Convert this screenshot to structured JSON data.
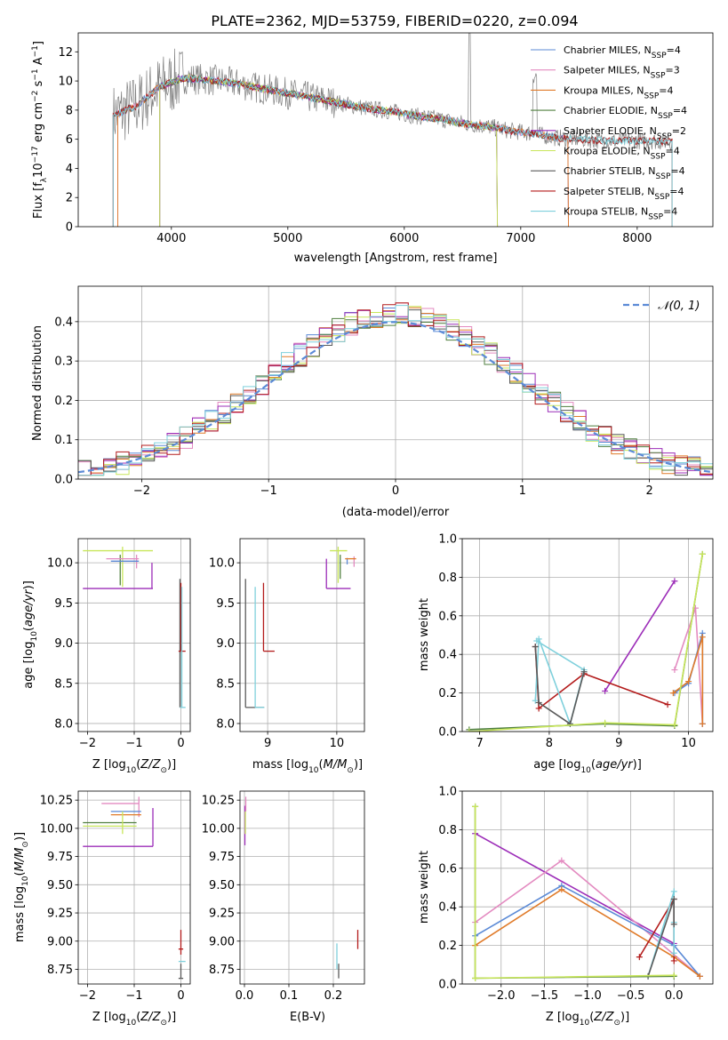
{
  "figure_title": "PLATE=2362, MJD=53759, FIBERID=0220, z=0.094",
  "colors": {
    "Chabrier MILES": "#5b8ad6",
    "Salpeter MILES": "#e38ac0",
    "Kroupa MILES": "#e07b2a",
    "Chabrier ELODIE": "#4f7f3f",
    "Salpeter ELODIE": "#9c2db8",
    "Kroupa ELODIE": "#c8e65a",
    "Chabrier STELIB": "#5a5a5a",
    "Salpeter STELIB": "#b31b1b",
    "Kroupa STELIB": "#7fd0dc",
    "data": "#808080",
    "normal": "#5b8ad6"
  },
  "chart_data": [
    {
      "id": "spectrum",
      "type": "line",
      "title": "PLATE=2362, MJD=53759, FIBERID=0220, z=0.094",
      "xlabel": "wavelength [Angstrom, rest frame]",
      "ylabel": "Flux [f",
      "ylabel_parts": [
        "Flux [f",
        "λ",
        "10",
        "−17",
        " erg cm",
        "−2",
        " s",
        "−1",
        " A",
        "−1",
        "]"
      ],
      "xlim": [
        3200,
        8650
      ],
      "ylim": [
        0,
        13.3
      ],
      "xticks": [
        4000,
        5000,
        6000,
        7000,
        8000
      ],
      "yticks": [
        0,
        2,
        4,
        6,
        8,
        10,
        12
      ],
      "legend": "top-right",
      "legend_entries": [
        {
          "label": "Chabrier MILES, N",
          "sub": "SSP",
          "tail": "=4",
          "model": "Chabrier MILES"
        },
        {
          "label": "Salpeter MILES, N",
          "sub": "SSP",
          "tail": "=3",
          "model": "Salpeter MILES"
        },
        {
          "label": "Kroupa MILES, N",
          "sub": "SSP",
          "tail": "=4",
          "model": "Kroupa MILES"
        },
        {
          "label": "Chabrier ELODIE, N",
          "sub": "SSP",
          "tail": "=4",
          "model": "Chabrier ELODIE"
        },
        {
          "label": "Salpeter ELODIE, N",
          "sub": "SSP",
          "tail": "=2",
          "model": "Salpeter ELODIE"
        },
        {
          "label": "Kroupa ELODIE, N",
          "sub": "SSP",
          "tail": "=4",
          "model": "Kroupa ELODIE"
        },
        {
          "label": "Chabrier STELIB, N",
          "sub": "SSP",
          "tail": "=4",
          "model": "Chabrier STELIB"
        },
        {
          "label": "Salpeter STELIB, N",
          "sub": "SSP",
          "tail": "=4",
          "model": "Salpeter STELIB"
        },
        {
          "label": "Kroupa STELIB, N",
          "sub": "SSP",
          "tail": "=4",
          "model": "Kroupa STELIB"
        }
      ],
      "continuum": {
        "x": [
          3500,
          3700,
          3900,
          4100,
          4300,
          4500,
          4700,
          4900,
          5100,
          5300,
          5500,
          5700,
          5900,
          6100,
          6300,
          6500,
          6700,
          6900,
          7100,
          7300,
          7500,
          7700,
          7900,
          8100,
          8300
        ],
        "y": [
          7.6,
          8.3,
          9.6,
          10.2,
          10.1,
          9.9,
          9.6,
          9.3,
          9.0,
          8.7,
          8.4,
          8.1,
          7.9,
          7.6,
          7.4,
          7.1,
          6.9,
          6.6,
          6.4,
          6.1,
          6.0,
          5.9,
          5.9,
          5.9,
          5.8
        ]
      },
      "model_x_ranges": {
        "MILES": [
          3540,
          7410
        ],
        "ELODIE": [
          3900,
          6800
        ],
        "STELIB": [
          3500,
          8300
        ]
      }
    },
    {
      "id": "residuals",
      "type": "histogram",
      "xlabel": "(data-model)/error",
      "ylabel": "Normed distribution",
      "xlim": [
        -2.5,
        2.5
      ],
      "ylim": [
        0,
        0.49
      ],
      "xticks": [
        -2,
        -1,
        0,
        1,
        2
      ],
      "yticks": [
        0.0,
        0.1,
        0.2,
        0.3,
        0.4
      ],
      "legend": "top-right",
      "legend_label": "𝒩(0, 1)",
      "bin_width": 0.1
    },
    {
      "id": "age-Z",
      "type": "scatter",
      "xlabel": "Z [log10(Z/Z⊙)]",
      "ylabel": "age  [log10(age/yr)]",
      "xlim": [
        -2.2,
        0.2
      ],
      "ylim": [
        7.9,
        10.3
      ],
      "xticks": [
        -2,
        -1,
        0
      ],
      "yticks": [
        8.0,
        8.5,
        9.0,
        9.5,
        10.0
      ],
      "bars": [
        {
          "model": "Kroupa ELODIE",
          "h": [
            -2.1,
            -0.6
          ],
          "y": 10.15
        },
        {
          "model": "Kroupa ELODIE",
          "h": [
            -1.3,
            -1.2
          ],
          "v": [
            9.7,
            10.2
          ],
          "x": -1.25
        },
        {
          "model": "Chabrier ELODIE",
          "v": [
            9.72,
            10.1
          ],
          "x": -1.3
        },
        {
          "model": "Salpeter ELODIE",
          "h": [
            -2.1,
            -0.6
          ],
          "y": 9.68
        },
        {
          "model": "Salpeter ELODIE",
          "v": [
            9.68,
            10.0
          ],
          "x": -0.62
        },
        {
          "model": "Salpeter MILES",
          "h": [
            -1.6,
            -0.9
          ],
          "y": 10.05
        },
        {
          "model": "Salpeter MILES",
          "v": [
            9.93,
            10.1
          ],
          "x": -0.95
        },
        {
          "model": "Chabrier MILES",
          "h": [
            -1.5,
            -0.9
          ],
          "y": 10.02
        },
        {
          "model": "Chabrier STELIB",
          "v": [
            8.2,
            9.8
          ],
          "x": -0.02
        },
        {
          "model": "Salpeter STELIB",
          "v": [
            8.9,
            9.75
          ],
          "x": 0.0
        },
        {
          "model": "Salpeter STELIB",
          "h": [
            -0.05,
            0.1
          ],
          "y": 8.9
        },
        {
          "model": "Kroupa STELIB",
          "v": [
            8.2,
            9.7
          ],
          "x": 0.02
        },
        {
          "model": "Kroupa STELIB",
          "h": [
            -0.02,
            0.1
          ],
          "y": 8.2
        }
      ]
    },
    {
      "id": "age-mass",
      "type": "scatter",
      "xlabel": "mass [log10(M/M⊙)]",
      "ylabel": "",
      "xlim": [
        8.6,
        10.4
      ],
      "ylim": [
        7.9,
        10.3
      ],
      "xticks": [
        9,
        10
      ],
      "yticks": [
        8.0,
        8.5,
        9.0,
        9.5,
        10.0
      ],
      "bars": [
        {
          "model": "Chabrier STELIB",
          "v": [
            8.2,
            9.8
          ],
          "x": 8.68
        },
        {
          "model": "Chabrier STELIB",
          "h": [
            8.68,
            8.95
          ],
          "y": 8.2
        },
        {
          "model": "Kroupa STELIB",
          "v": [
            8.2,
            9.7
          ],
          "x": 8.82
        },
        {
          "model": "Kroupa STELIB",
          "h": [
            8.82,
            8.95
          ],
          "y": 8.2
        },
        {
          "model": "Salpeter STELIB",
          "v": [
            8.9,
            9.75
          ],
          "x": 8.94
        },
        {
          "model": "Salpeter STELIB",
          "h": [
            8.94,
            9.1
          ],
          "y": 8.9
        },
        {
          "model": "Salpeter ELODIE",
          "h": [
            9.85,
            10.2
          ],
          "y": 9.68
        },
        {
          "model": "Salpeter ELODIE",
          "v": [
            9.68,
            10.05
          ],
          "x": 9.85
        },
        {
          "model": "Kroupa ELODIE",
          "h": [
            9.9,
            10.15
          ],
          "y": 10.15
        },
        {
          "model": "Kroupa ELODIE",
          "v": [
            9.75,
            10.2
          ],
          "x": 10.02
        },
        {
          "model": "Chabrier ELODIE",
          "v": [
            9.8,
            10.1
          ],
          "x": 10.05
        },
        {
          "model": "Salpeter MILES",
          "v": [
            9.95,
            10.08
          ],
          "x": 10.25
        },
        {
          "model": "Chabrier MILES",
          "v": [
            9.98,
            10.06
          ],
          "x": 10.15
        },
        {
          "model": "Kroupa MILES",
          "h": [
            10.12,
            10.28
          ],
          "y": 10.05
        }
      ]
    },
    {
      "id": "weight-age",
      "type": "line",
      "xlabel": "age  [log10(age/yr)]",
      "ylabel": "mass weight",
      "xlim": [
        6.75,
        10.35
      ],
      "ylim": [
        0,
        1.0
      ],
      "xticks": [
        7,
        8,
        9,
        10
      ],
      "yticks": [
        0.0,
        0.2,
        0.4,
        0.6,
        0.8,
        1.0
      ],
      "series": [
        {
          "model": "Salpeter ELODIE",
          "x": [
            8.8,
            9.8
          ],
          "y": [
            0.21,
            0.78
          ]
        },
        {
          "model": "Salpeter STELIB",
          "x": [
            7.8,
            7.85,
            8.5,
            9.7
          ],
          "y": [
            0.44,
            0.12,
            0.3,
            0.14
          ]
        },
        {
          "model": "Kroupa STELIB",
          "x": [
            7.8,
            7.85,
            8.3,
            8.5,
            7.82
          ],
          "y": [
            0.16,
            0.48,
            0.04,
            0.32,
            0.47
          ]
        },
        {
          "model": "Chabrier STELIB",
          "x": [
            7.8,
            7.85,
            8.3,
            8.5
          ],
          "y": [
            0.44,
            0.15,
            0.04,
            0.31
          ]
        },
        {
          "model": "Salpeter MILES",
          "x": [
            9.8,
            10.1,
            10.2
          ],
          "y": [
            0.32,
            0.64,
            0.04
          ]
        },
        {
          "model": "Chabrier MILES",
          "x": [
            9.8,
            10.0,
            10.2,
            10.2
          ],
          "y": [
            0.2,
            0.25,
            0.51,
            0.04
          ]
        },
        {
          "model": "Kroupa MILES",
          "x": [
            9.78,
            10.0,
            10.2,
            10.2
          ],
          "y": [
            0.2,
            0.26,
            0.49,
            0.04
          ]
        },
        {
          "model": "Chabrier ELODIE",
          "x": [
            6.85,
            8.8,
            9.8,
            10.2
          ],
          "y": [
            0.01,
            0.04,
            0.03,
            0.92
          ]
        },
        {
          "model": "Kroupa ELODIE",
          "x": [
            6.85,
            8.8,
            9.8,
            10.2
          ],
          "y": [
            0.0,
            0.045,
            0.035,
            0.92
          ]
        }
      ]
    },
    {
      "id": "mass-Z",
      "type": "scatter",
      "xlabel": "Z [log10(Z/Z⊙)]",
      "ylabel": "mass [log10(M/M⊙)]",
      "xlim": [
        -2.2,
        0.2
      ],
      "ylim": [
        8.62,
        10.33
      ],
      "xticks": [
        -2,
        -1,
        0
      ],
      "yticks": [
        8.75,
        9.0,
        9.25,
        9.5,
        9.75,
        10.0,
        10.25
      ],
      "bars": [
        {
          "model": "Salpeter MILES",
          "h": [
            -1.7,
            -0.9
          ],
          "y": 10.22
        },
        {
          "model": "Salpeter MILES",
          "v": [
            10.1,
            10.28
          ],
          "x": -0.9
        },
        {
          "model": "Chabrier MILES",
          "h": [
            -1.5,
            -0.85
          ],
          "y": 10.15
        },
        {
          "model": "Kroupa MILES",
          "h": [
            -1.5,
            -0.85
          ],
          "y": 10.12
        },
        {
          "model": "Chabrier ELODIE",
          "h": [
            -2.1,
            -0.95
          ],
          "y": 10.05
        },
        {
          "model": "Kroupa ELODIE",
          "h": [
            -2.1,
            -0.95
          ],
          "y": 10.02
        },
        {
          "model": "Kroupa ELODIE",
          "v": [
            9.95,
            10.15
          ],
          "x": -1.25
        },
        {
          "model": "Salpeter ELODIE",
          "h": [
            -2.1,
            -0.6
          ],
          "y": 9.84
        },
        {
          "model": "Salpeter ELODIE",
          "v": [
            9.84,
            10.18
          ],
          "x": -0.6
        },
        {
          "model": "Salpeter STELIB",
          "v": [
            8.88,
            9.1
          ],
          "x": 0.0
        },
        {
          "model": "Salpeter STELIB",
          "h": [
            -0.05,
            0.05
          ],
          "y": 8.93
        },
        {
          "model": "Kroupa STELIB",
          "h": [
            -0.05,
            0.1
          ],
          "y": 8.82
        },
        {
          "model": "Chabrier STELIB",
          "h": [
            -0.05,
            0.05
          ],
          "y": 8.67
        },
        {
          "model": "Chabrier STELIB",
          "v": [
            8.67,
            8.8
          ],
          "x": 0.0
        }
      ]
    },
    {
      "id": "mass-EBV",
      "type": "scatter",
      "xlabel": "E(B-V)",
      "ylabel": "",
      "xlim": [
        -0.01,
        0.27
      ],
      "ylim": [
        8.62,
        10.33
      ],
      "xticks": [
        0.0,
        0.1,
        0.2
      ],
      "yticks": [
        8.75,
        9.0,
        9.25,
        9.5,
        9.75,
        10.0,
        10.25
      ],
      "bars": [
        {
          "model": "Salpeter ELODIE",
          "v": [
            9.85,
            10.2
          ],
          "x": 0.001
        },
        {
          "model": "Salpeter MILES",
          "v": [
            10.15,
            10.28
          ],
          "x": 0.003
        },
        {
          "model": "Kroupa ELODIE",
          "v": [
            9.95,
            10.15
          ],
          "x": 0.002
        },
        {
          "model": "Chabrier STELIB",
          "v": [
            8.67,
            8.8
          ],
          "x": 0.212
        },
        {
          "model": "Kroupa STELIB",
          "v": [
            8.75,
            8.98
          ],
          "x": 0.208
        },
        {
          "model": "Salpeter STELIB",
          "v": [
            8.93,
            9.1
          ],
          "x": 0.255
        }
      ]
    },
    {
      "id": "weight-Z",
      "type": "line",
      "xlabel": "Z [log10(Z/Z⊙)]",
      "ylabel": "mass weight",
      "xlim": [
        -2.45,
        0.45
      ],
      "ylim": [
        0,
        1.0
      ],
      "xticks": [
        -2.0,
        -1.5,
        -1.0,
        -0.5,
        0.0
      ],
      "yticks": [
        0.0,
        0.2,
        0.4,
        0.6,
        0.8,
        1.0
      ],
      "series": [
        {
          "model": "Salpeter ELODIE",
          "x": [
            -2.3,
            0.0
          ],
          "y": [
            0.78,
            0.21
          ]
        },
        {
          "model": "Salpeter MILES",
          "x": [
            -2.3,
            -1.3,
            0.3
          ],
          "y": [
            0.32,
            0.64,
            0.04
          ]
        },
        {
          "model": "Chabrier MILES",
          "x": [
            -2.3,
            -1.3,
            0.0,
            0.3
          ],
          "y": [
            0.25,
            0.51,
            0.2,
            0.04
          ]
        },
        {
          "model": "Kroupa MILES",
          "x": [
            -2.3,
            -1.3,
            0.0,
            0.3
          ],
          "y": [
            0.2,
            0.49,
            0.14,
            0.04
          ]
        },
        {
          "model": "Salpeter STELIB",
          "x": [
            -0.4,
            0.0,
            0.0
          ],
          "y": [
            0.14,
            0.44,
            0.12
          ]
        },
        {
          "model": "Kroupa STELIB",
          "x": [
            -0.3,
            0.0,
            0.0,
            0.0
          ],
          "y": [
            0.04,
            0.48,
            0.16,
            0.32
          ]
        },
        {
          "model": "Chabrier STELIB",
          "x": [
            -0.3,
            0.0,
            0.0
          ],
          "y": [
            0.04,
            0.44,
            0.31
          ]
        },
        {
          "model": "Chabrier ELODIE",
          "x": [
            -2.3,
            -2.3,
            0.0
          ],
          "y": [
            0.92,
            0.03,
            0.04
          ]
        },
        {
          "model": "Kroupa ELODIE",
          "x": [
            -2.3,
            -2.3,
            0.0
          ],
          "y": [
            0.92,
            0.03,
            0.045
          ]
        }
      ]
    }
  ]
}
